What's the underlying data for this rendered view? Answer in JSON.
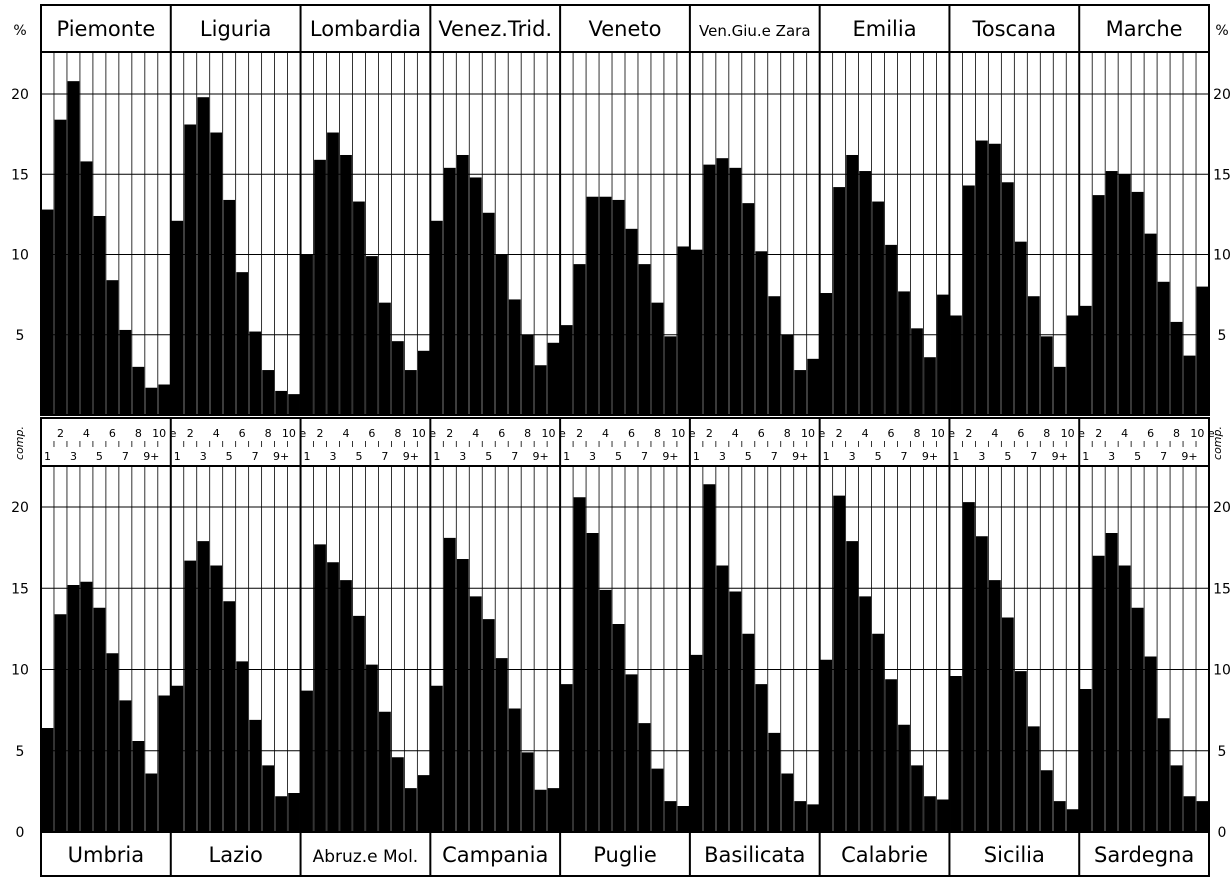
{
  "chart_data": [
    {
      "type": "bar",
      "layout_role": "top-row",
      "y_unit_label": "%",
      "ylim": [
        0,
        22.5
      ],
      "y_ticks": [
        5,
        10,
        15,
        20
      ],
      "x_axis_side_label": "comp.",
      "x_tick_labels_even": [
        "2",
        "4",
        "6",
        "8",
        "10 e"
      ],
      "x_tick_labels_odd": [
        "1",
        "3",
        "5",
        "7",
        "9+"
      ],
      "categories": [
        "1",
        "2",
        "3",
        "4",
        "5",
        "6",
        "7",
        "8",
        "9",
        "10+"
      ],
      "series": [
        {
          "name": "Piemonte",
          "values": [
            12.8,
            18.4,
            20.8,
            15.8,
            12.4,
            8.4,
            5.3,
            3.0,
            1.7,
            1.9
          ]
        },
        {
          "name": "Liguria",
          "values": [
            12.1,
            18.1,
            19.8,
            17.6,
            13.4,
            8.9,
            5.2,
            2.8,
            1.5,
            1.3
          ]
        },
        {
          "name": "Lombardia",
          "values": [
            10.0,
            15.9,
            17.6,
            16.2,
            13.3,
            9.9,
            7.0,
            4.6,
            2.8,
            4.0
          ]
        },
        {
          "name": "Venez.Trid.",
          "values": [
            12.1,
            15.4,
            16.2,
            14.8,
            12.6,
            10.0,
            7.2,
            5.0,
            3.1,
            4.5
          ]
        },
        {
          "name": "Veneto",
          "values": [
            5.6,
            9.4,
            13.6,
            13.6,
            13.4,
            11.6,
            9.4,
            7.0,
            4.9,
            10.5
          ]
        },
        {
          "name": "Ven.Giu.e Zara",
          "values": [
            10.3,
            15.6,
            16.0,
            15.4,
            13.2,
            10.2,
            7.4,
            5.0,
            2.8,
            3.5
          ]
        },
        {
          "name": "Emilia",
          "values": [
            7.6,
            14.2,
            16.2,
            15.2,
            13.3,
            10.6,
            7.7,
            5.4,
            3.6,
            7.5
          ]
        },
        {
          "name": "Toscana",
          "values": [
            6.2,
            14.3,
            17.1,
            16.9,
            14.5,
            10.8,
            7.4,
            4.9,
            3.0,
            6.2
          ]
        },
        {
          "name": "Marche",
          "values": [
            6.8,
            13.7,
            15.2,
            15.0,
            13.9,
            11.3,
            8.3,
            5.8,
            3.7,
            8.0
          ]
        }
      ]
    },
    {
      "type": "bar",
      "layout_role": "bottom-row",
      "y_unit_label": "",
      "ylim": [
        0,
        22.5
      ],
      "y_ticks": [
        0,
        5,
        10,
        15,
        20
      ],
      "categories": [
        "1",
        "2",
        "3",
        "4",
        "5",
        "6",
        "7",
        "8",
        "9",
        "10+"
      ],
      "series": [
        {
          "name": "Umbria",
          "values": [
            6.4,
            13.4,
            15.2,
            15.4,
            13.8,
            11.0,
            8.1,
            5.6,
            3.6,
            8.4
          ]
        },
        {
          "name": "Lazio",
          "values": [
            9.0,
            16.7,
            17.9,
            16.4,
            14.2,
            10.5,
            6.9,
            4.1,
            2.2,
            2.4
          ]
        },
        {
          "name": "Abruz.e Mol.",
          "values": [
            8.7,
            17.7,
            16.6,
            15.5,
            13.3,
            10.3,
            7.4,
            4.6,
            2.7,
            3.5
          ]
        },
        {
          "name": "Campania",
          "values": [
            9.0,
            18.1,
            16.8,
            14.5,
            13.1,
            10.7,
            7.6,
            4.9,
            2.6,
            2.7
          ]
        },
        {
          "name": "Puglie",
          "values": [
            9.1,
            20.6,
            18.4,
            14.9,
            12.8,
            9.7,
            6.7,
            3.9,
            1.9,
            1.6
          ]
        },
        {
          "name": "Basilicata",
          "values": [
            10.9,
            21.4,
            16.4,
            14.8,
            12.2,
            9.1,
            6.1,
            3.6,
            1.9,
            1.7
          ]
        },
        {
          "name": "Calabrie",
          "values": [
            10.6,
            20.7,
            17.9,
            14.5,
            12.2,
            9.4,
            6.6,
            4.1,
            2.2,
            2.0
          ]
        },
        {
          "name": "Sicilia",
          "values": [
            9.6,
            20.3,
            18.2,
            15.5,
            13.2,
            9.9,
            6.5,
            3.8,
            1.9,
            1.4
          ]
        },
        {
          "name": "Sardegna",
          "values": [
            8.8,
            17.0,
            18.4,
            16.4,
            13.8,
            10.8,
            7.0,
            4.1,
            2.2,
            1.9
          ]
        }
      ]
    }
  ]
}
